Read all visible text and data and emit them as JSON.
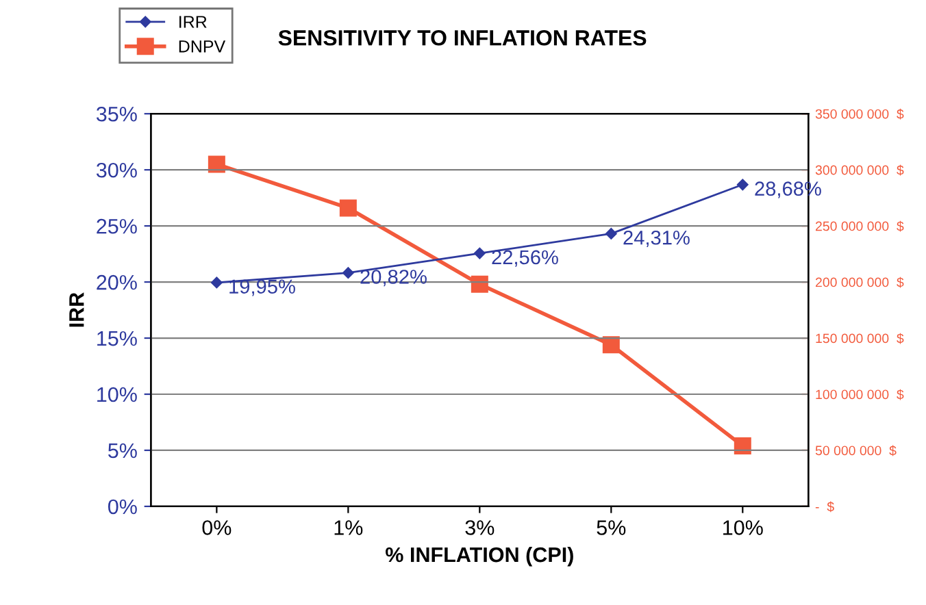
{
  "chart_data": {
    "type": "line",
    "title": "SENSITIVITY TO INFLATION RATES",
    "xlabel": "% INFLATION (CPI)",
    "ylabel": "IRR",
    "categories": [
      "0%",
      "1%",
      "3%",
      "5%",
      "10%"
    ],
    "series": [
      {
        "name": "IRR",
        "color": "#2e3a9e",
        "marker": "diamond",
        "values": [
          19.95,
          20.82,
          22.56,
          24.31,
          28.68
        ],
        "value_labels": [
          "19,95%",
          "20,82%",
          "22,56%",
          "24,31%",
          "28,68%"
        ]
      },
      {
        "name": "DNPV",
        "color": "#f25a3c",
        "marker": "square",
        "axis": "y2",
        "values": [
          305000000,
          266000000,
          198000000,
          144000000,
          54000000
        ]
      }
    ],
    "ylim": [
      0,
      35
    ],
    "yticks": [
      {
        "value": 0,
        "label": "0%"
      },
      {
        "value": 5,
        "label": "5%"
      },
      {
        "value": 10,
        "label": "10%"
      },
      {
        "value": 15,
        "label": "15%"
      },
      {
        "value": 20,
        "label": "20%"
      },
      {
        "value": 25,
        "label": "25%"
      },
      {
        "value": 30,
        "label": "30%"
      },
      {
        "value": 35,
        "label": "35%"
      }
    ],
    "y2lim": [
      0,
      350000000
    ],
    "y2ticks": [
      {
        "value": 0,
        "label": "-  $"
      },
      {
        "value": 50000000,
        "label": "50 000 000  $"
      },
      {
        "value": 100000000,
        "label": "100 000 000  $"
      },
      {
        "value": 150000000,
        "label": "150 000 000  $"
      },
      {
        "value": 200000000,
        "label": "200 000 000  $"
      },
      {
        "value": 250000000,
        "label": "250 000 000  $"
      },
      {
        "value": 300000000,
        "label": "300 000 000  $"
      },
      {
        "value": 350000000,
        "label": "350 000 000  $"
      }
    ],
    "grid": "y",
    "legend": "top left"
  }
}
